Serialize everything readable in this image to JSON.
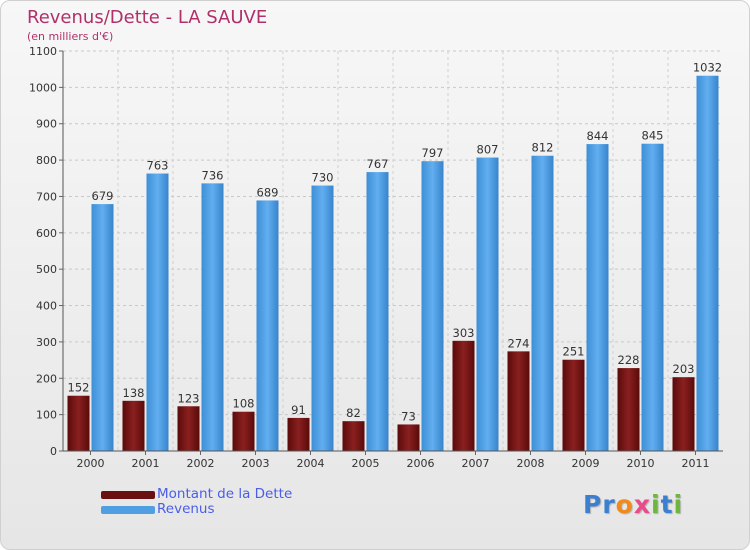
{
  "chart_data": {
    "type": "bar",
    "title": "Revenus/Dette - LA SAUVE",
    "subtitle": "(en milliers d'€)",
    "categories": [
      "2000",
      "2001",
      "2002",
      "2003",
      "2004",
      "2005",
      "2006",
      "2007",
      "2008",
      "2009",
      "2010",
      "2011"
    ],
    "series": [
      {
        "name": "Montant de la Dette",
        "color": "#7a1414",
        "values": [
          152,
          138,
          123,
          108,
          91,
          82,
          73,
          303,
          274,
          251,
          228,
          203
        ]
      },
      {
        "name": "Revenus",
        "color": "#4f9fe2",
        "values": [
          679,
          763,
          736,
          689,
          730,
          767,
          797,
          807,
          812,
          844,
          845,
          1032
        ]
      }
    ],
    "ylim": [
      0,
      1100
    ],
    "yticks": [
      0,
      100,
      200,
      300,
      400,
      500,
      600,
      700,
      800,
      900,
      1000,
      1100
    ],
    "grid": true,
    "legend": "bottom-left"
  },
  "logo": {
    "letters": [
      {
        "char": "P",
        "color": "#3b7fd0"
      },
      {
        "char": "r",
        "color": "#3b7fd0"
      },
      {
        "char": "o",
        "color": "#f08a1c"
      },
      {
        "char": "x",
        "color": "#e84a8a"
      },
      {
        "char": "i",
        "color": "#6bb83a"
      },
      {
        "char": "t",
        "color": "#3b7fd0"
      },
      {
        "char": "i",
        "color": "#6bb83a"
      }
    ]
  }
}
